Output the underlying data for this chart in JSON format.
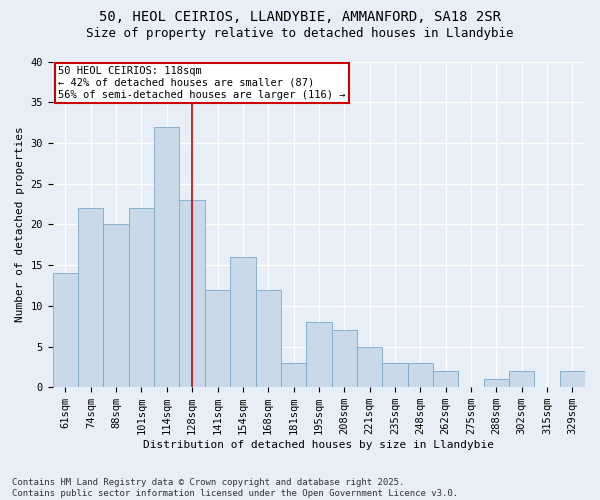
{
  "title1": "50, HEOL CEIRIOS, LLANDYBIE, AMMANFORD, SA18 2SR",
  "title2": "Size of property relative to detached houses in Llandybie",
  "xlabel": "Distribution of detached houses by size in Llandybie",
  "ylabel": "Number of detached properties",
  "categories": [
    "61sqm",
    "74sqm",
    "88sqm",
    "101sqm",
    "114sqm",
    "128sqm",
    "141sqm",
    "154sqm",
    "168sqm",
    "181sqm",
    "195sqm",
    "208sqm",
    "221sqm",
    "235sqm",
    "248sqm",
    "262sqm",
    "275sqm",
    "288sqm",
    "302sqm",
    "315sqm",
    "329sqm"
  ],
  "values": [
    14,
    22,
    20,
    22,
    32,
    23,
    12,
    16,
    12,
    3,
    8,
    7,
    5,
    3,
    3,
    2,
    0,
    1,
    2,
    0,
    2
  ],
  "bar_color": "#c9d9ea",
  "bar_edge_color": "#7aaac8",
  "background_color": "#e8eef5",
  "grid_color": "#ffffff",
  "annotation_line1": "50 HEOL CEIRIOS: 118sqm",
  "annotation_line2": "← 42% of detached houses are smaller (87)",
  "annotation_line3": "56% of semi-detached houses are larger (116) →",
  "annotation_box_color": "#ffffff",
  "annotation_box_edge_color": "#cc0000",
  "vline_x": 5,
  "vline_color": "#cc0000",
  "ylim": [
    0,
    40
  ],
  "yticks": [
    0,
    5,
    10,
    15,
    20,
    25,
    30,
    35,
    40
  ],
  "footer": "Contains HM Land Registry data © Crown copyright and database right 2025.\nContains public sector information licensed under the Open Government Licence v3.0.",
  "title_fontsize": 10,
  "subtitle_fontsize": 9,
  "axis_label_fontsize": 8,
  "tick_fontsize": 7.5,
  "annotation_fontsize": 7.5,
  "footer_fontsize": 6.5
}
